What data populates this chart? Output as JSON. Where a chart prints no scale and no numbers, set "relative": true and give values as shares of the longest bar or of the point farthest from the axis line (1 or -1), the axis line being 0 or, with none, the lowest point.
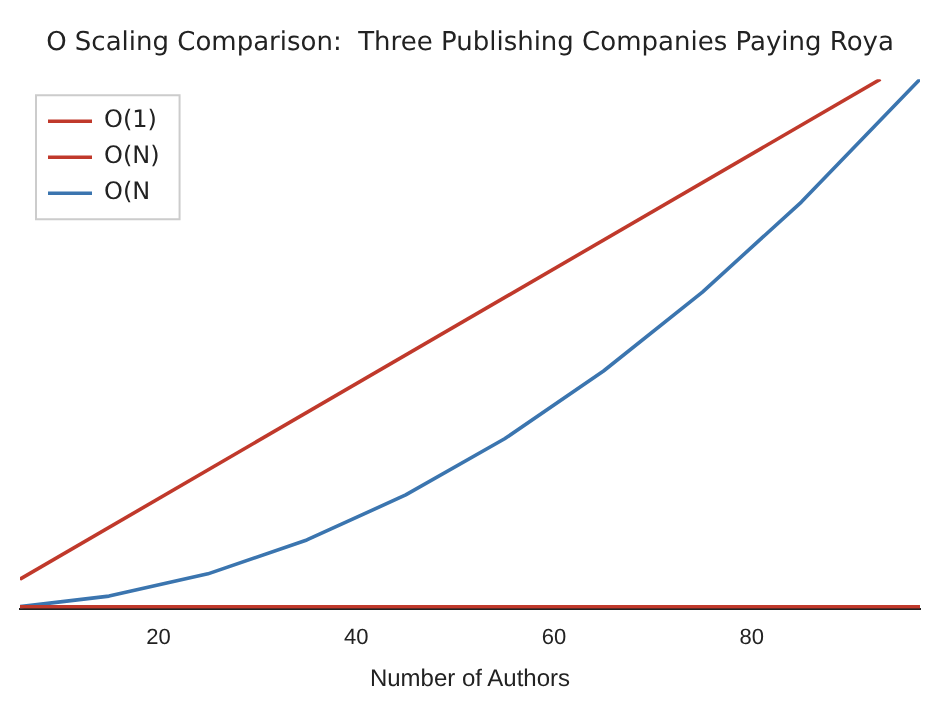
{
  "chart_data": {
    "type": "line",
    "title": "O Scaling Comparison:  Three Publishing Companies Paying Roya",
    "xlabel": "Number of Authors",
    "relative": true,
    "xlim": [
      6,
      97
    ],
    "xticks": [
      20,
      40,
      60,
      80
    ],
    "legend": "top left",
    "marker": "none",
    "line_style": "solid",
    "grid": false,
    "series": [
      {
        "name": "O(1)",
        "color": "#c0392b",
        "x": [
          6,
          97
        ],
        "values": [
          0.004,
          0.004
        ]
      },
      {
        "name": "O(N)",
        "color": "#c0392b",
        "x": [
          6,
          93
        ],
        "values": [
          0.056,
          1.0
        ]
      },
      {
        "name": "O(N",
        "color": "#3b75af",
        "x": [
          6,
          15,
          25,
          35,
          45,
          55,
          65,
          75,
          85,
          97
        ],
        "values": [
          0.004,
          0.024,
          0.066,
          0.13,
          0.215,
          0.321,
          0.449,
          0.598,
          0.768,
          1.0
        ]
      }
    ]
  }
}
